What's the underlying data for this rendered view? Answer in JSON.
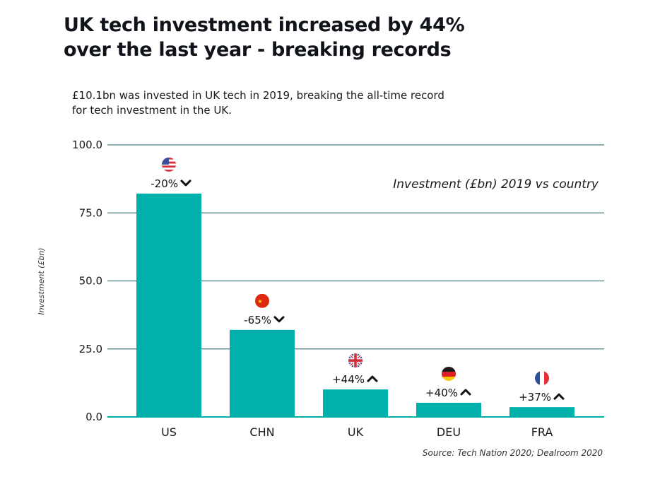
{
  "header": {
    "title_line1": "UK tech investment increased by 44%",
    "title_line2": "over the last year - breaking records",
    "subtitle_line1": "£10.1bn was invested in UK tech in 2019, breaking the all-time record",
    "subtitle_line2": "for tech investment in the UK."
  },
  "chart_data": {
    "type": "bar",
    "title": "Investment (£bn) 2019 vs country",
    "xlabel": "",
    "ylabel": "Investment (£bn)",
    "ylim": [
      0,
      100
    ],
    "yticks": [
      "0.0",
      "25.0",
      "50.0",
      "75.0",
      "100.0"
    ],
    "ytick_values": [
      0,
      25,
      50,
      75,
      100
    ],
    "grid": true,
    "categories": [
      "US",
      "CHN",
      "UK",
      "DEU",
      "FRA"
    ],
    "values": [
      82.1,
      32.0,
      10.1,
      5.2,
      3.6
    ],
    "changes": [
      "-20%",
      "-65%",
      "+44%",
      "+40%",
      "+37%"
    ],
    "change_directions": [
      "down",
      "down",
      "up",
      "up",
      "up"
    ],
    "flags": [
      "us-flag-icon",
      "china-flag-icon",
      "uk-flag-icon",
      "germany-flag-icon",
      "france-flag-icon"
    ],
    "legend_text": "Investment (£bn) 2019 vs country",
    "legend_position": "top-right",
    "source": "Source: Tech Nation 2020; Dealroom 2020",
    "colors": {
      "bar": "#00b0aa",
      "grid": "#4d7a80",
      "baseline": "#00b0aa"
    }
  }
}
